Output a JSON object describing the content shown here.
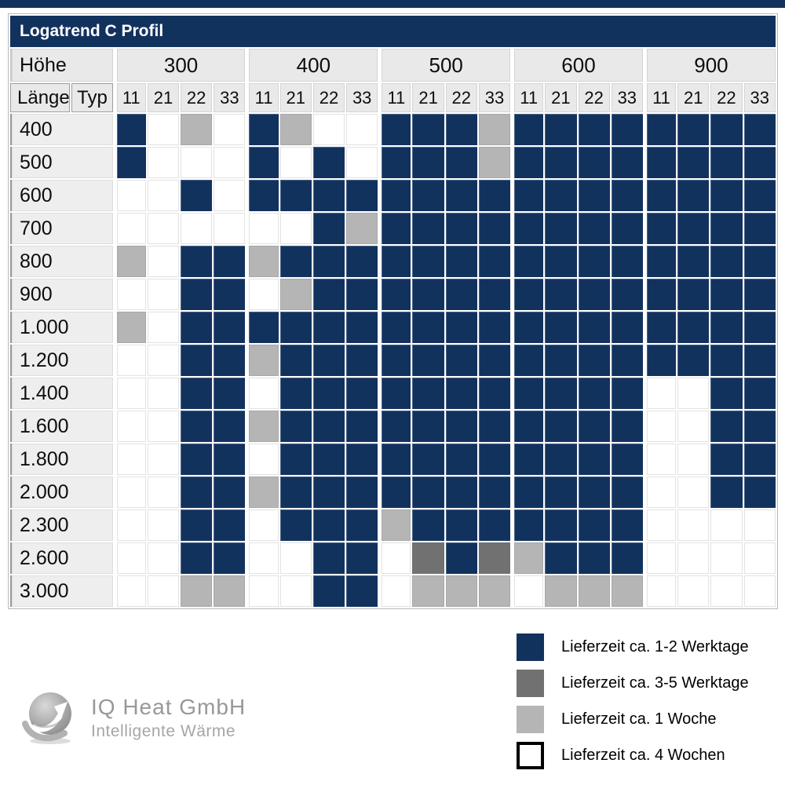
{
  "accent_color": "#12325e",
  "chart_data": {
    "type": "heatmap",
    "title": "Logatrend C Profil",
    "hoehe_label": "Höhe",
    "laenge_label": "Länge",
    "typ_label": "Typ",
    "col_groups": [
      {
        "height": "300",
        "types": [
          "11",
          "21",
          "22",
          "33"
        ]
      },
      {
        "height": "400",
        "types": [
          "11",
          "21",
          "22",
          "33"
        ]
      },
      {
        "height": "500",
        "types": [
          "11",
          "21",
          "22",
          "33"
        ]
      },
      {
        "height": "600",
        "types": [
          "11",
          "21",
          "22",
          "33"
        ]
      },
      {
        "height": "900",
        "types": [
          "11",
          "21",
          "22",
          "33"
        ]
      }
    ],
    "rows": [
      {
        "label": "400",
        "cells": "NWGWNGWWNNNGNNNNNNNN"
      },
      {
        "label": "500",
        "cells": "NWWWNWNWNNNGNNNNNNNN"
      },
      {
        "label": "600",
        "cells": "WWNWNNNNNNNNNNNNNNNN"
      },
      {
        "label": "700",
        "cells": "WWWWWWNGNNNNNNNNNNNN"
      },
      {
        "label": "800",
        "cells": "GWNNGNNNNNNNNNNNNNNN"
      },
      {
        "label": "900",
        "cells": "WWNNWGNNNNNNNNNNNNNN"
      },
      {
        "label": "1.000",
        "cells": "GWNNNNNNNNNNNNNNNNNN"
      },
      {
        "label": "1.200",
        "cells": "WWNNGNNNNNNNNNNNNNNN"
      },
      {
        "label": "1.400",
        "cells": "WWNNWNNNNNNNNNNNWWNN"
      },
      {
        "label": "1.600",
        "cells": "WWNNGNNNNNNNNNNNWWNN"
      },
      {
        "label": "1.800",
        "cells": "WWNNWNNNNNNNNNNNWWNN"
      },
      {
        "label": "2.000",
        "cells": "WWNNGNNNNNNNNNNNWWNN"
      },
      {
        "label": "2.300",
        "cells": "WWNNWNNNGNNNNNNNWWWW"
      },
      {
        "label": "2.600",
        "cells": "WWNNWWNNWDNDGNNNWWWW"
      },
      {
        "label": "3.000",
        "cells": "WWGGWWNNWGGGWGGGWWWW"
      }
    ],
    "colors": {
      "N": "#12325e",
      "D": "#717171",
      "G": "#b5b5b5",
      "W": "#ffffff"
    },
    "legend": [
      {
        "key": "N",
        "label": "Lieferzeit ca. 1-2 Werktage"
      },
      {
        "key": "D",
        "label": "Lieferzeit ca. 3-5 Werktage"
      },
      {
        "key": "G",
        "label": "Lieferzeit ca. 1 Woche"
      },
      {
        "key": "W",
        "label": "Lieferzeit ca. 4 Wochen"
      }
    ]
  },
  "logo": {
    "name": "IQ Heat GmbH",
    "tagline": "Intelligente Wärme"
  }
}
